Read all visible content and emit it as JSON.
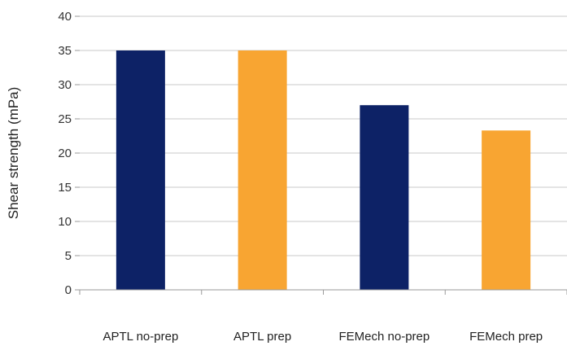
{
  "chart_data": {
    "type": "bar",
    "title": "",
    "xlabel": "",
    "ylabel": "Shear strength (mPa)",
    "categories": [
      "APTL no-prep",
      "APTL prep",
      "FEMech no-prep",
      "FEMech prep"
    ],
    "values": [
      35,
      35,
      27,
      23.3
    ],
    "colors": [
      "#0d2266",
      "#f8a532",
      "#0d2266",
      "#f8a532"
    ],
    "ylim": [
      0,
      40
    ],
    "yticks": [
      "0",
      "5",
      "10",
      "15",
      "20",
      "25",
      "30",
      "35",
      "40"
    ],
    "grid": true,
    "legend": "none"
  }
}
